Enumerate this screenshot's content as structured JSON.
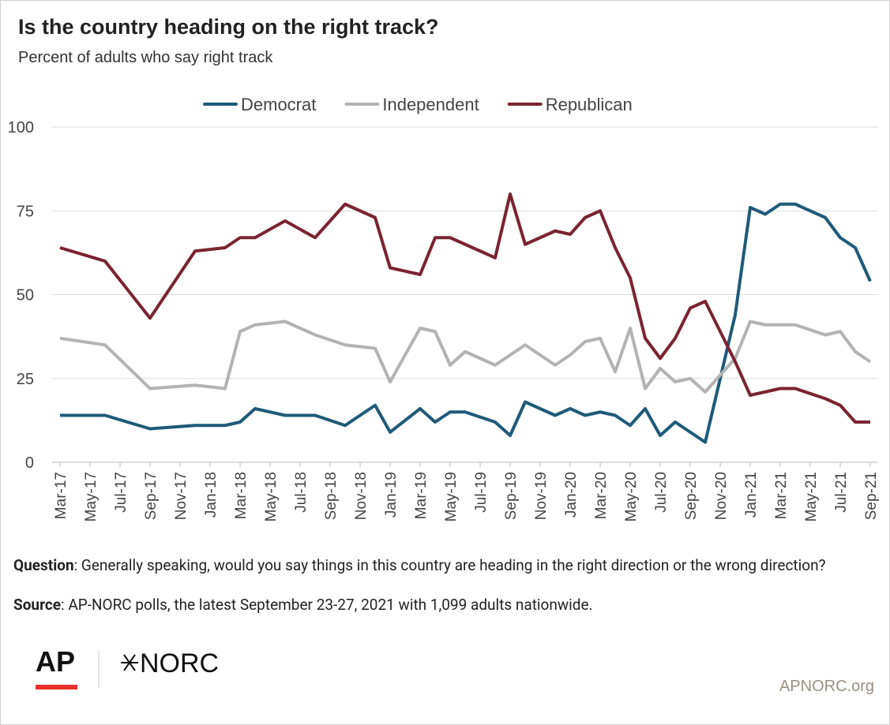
{
  "chart_data": {
    "type": "line",
    "title": "Is the country heading on the right track?",
    "subtitle": "Percent of adults who say right track",
    "x": [
      "2017-03",
      "2017-06",
      "2017-09",
      "2017-12",
      "2018-02",
      "2018-03",
      "2018-04",
      "2018-06",
      "2018-08",
      "2018-10",
      "2018-12",
      "2019-01",
      "2019-03",
      "2019-04",
      "2019-05",
      "2019-06",
      "2019-08",
      "2019-09",
      "2019-10",
      "2019-12",
      "2020-01",
      "2020-02",
      "2020-03",
      "2020-04",
      "2020-05",
      "2020-06",
      "2020-07",
      "2020-08",
      "2020-09",
      "2020-10",
      "2020-12",
      "2021-01",
      "2021-02",
      "2021-03",
      "2021-04",
      "2021-06",
      "2021-07",
      "2021-08",
      "2021-09"
    ],
    "series": [
      {
        "name": "Democrat",
        "color": "#1f5a78",
        "values": [
          14,
          14,
          10,
          11,
          11,
          12,
          16,
          14,
          14,
          11,
          17,
          9,
          16,
          12,
          15,
          15,
          12,
          8,
          18,
          14,
          16,
          14,
          15,
          14,
          11,
          16,
          8,
          12,
          9,
          6,
          44,
          76,
          74,
          77,
          77,
          73,
          67,
          64,
          54
        ]
      },
      {
        "name": "Independent",
        "color": "#b3b3b3",
        "values": [
          37,
          35,
          22,
          23,
          22,
          39,
          41,
          42,
          38,
          35,
          34,
          24,
          40,
          39,
          29,
          33,
          29,
          32,
          35,
          29,
          32,
          36,
          37,
          27,
          40,
          22,
          28,
          24,
          25,
          21,
          31,
          42,
          41,
          41,
          41,
          38,
          39,
          33,
          30
        ]
      },
      {
        "name": "Republican",
        "color": "#7b2331",
        "values": [
          64,
          60,
          43,
          63,
          64,
          67,
          67,
          72,
          67,
          77,
          73,
          58,
          56,
          67,
          67,
          65,
          61,
          80,
          65,
          69,
          68,
          73,
          75,
          64,
          55,
          37,
          31,
          37,
          46,
          48,
          30,
          20,
          21,
          22,
          22,
          19,
          17,
          12,
          12
        ]
      }
    ],
    "xlim": [
      "2017-03",
      "2021-09"
    ],
    "xticks": [
      {
        "value": "2017-03",
        "label": "Mar-17"
      },
      {
        "value": "2017-05",
        "label": "May-17"
      },
      {
        "value": "2017-07",
        "label": "Jul-17"
      },
      {
        "value": "2017-09",
        "label": "Sep-17"
      },
      {
        "value": "2017-11",
        "label": "Nov-17"
      },
      {
        "value": "2018-01",
        "label": "Jan-18"
      },
      {
        "value": "2018-03",
        "label": "Mar-18"
      },
      {
        "value": "2018-05",
        "label": "May-18"
      },
      {
        "value": "2018-07",
        "label": "Jul-18"
      },
      {
        "value": "2018-09",
        "label": "Sep-18"
      },
      {
        "value": "2018-11",
        "label": "Nov-18"
      },
      {
        "value": "2019-01",
        "label": "Jan-19"
      },
      {
        "value": "2019-03",
        "label": "Mar-19"
      },
      {
        "value": "2019-05",
        "label": "May-19"
      },
      {
        "value": "2019-07",
        "label": "Jul-19"
      },
      {
        "value": "2019-09",
        "label": "Sep-19"
      },
      {
        "value": "2019-11",
        "label": "Nov-19"
      },
      {
        "value": "2020-01",
        "label": "Jan-20"
      },
      {
        "value": "2020-03",
        "label": "Mar-20"
      },
      {
        "value": "2020-05",
        "label": "May-20"
      },
      {
        "value": "2020-07",
        "label": "Jul-20"
      },
      {
        "value": "2020-09",
        "label": "Sep-20"
      },
      {
        "value": "2020-11",
        "label": "Nov-20"
      },
      {
        "value": "2021-01",
        "label": "Jan-21"
      },
      {
        "value": "2021-03",
        "label": "Mar-21"
      },
      {
        "value": "2021-05",
        "label": "May-21"
      },
      {
        "value": "2021-07",
        "label": "Jul-21"
      },
      {
        "value": "2021-09",
        "label": "Sep-21"
      }
    ],
    "ylim": [
      0,
      100
    ],
    "yticks": [
      0,
      25,
      50,
      75,
      100
    ],
    "grid": true,
    "legend": "top"
  },
  "footer": {
    "question_label": "Question",
    "question": ": Generally speaking, would you say things in this country are heading in the right direction or the wrong direction?",
    "source_label": "Source",
    "source": ": AP-NORC polls, the latest September 23-27, 2021 with 1,099 adults nationwide.",
    "logo_ap": "AP",
    "logo_norc": "NORC",
    "site": "APNORC.org"
  }
}
